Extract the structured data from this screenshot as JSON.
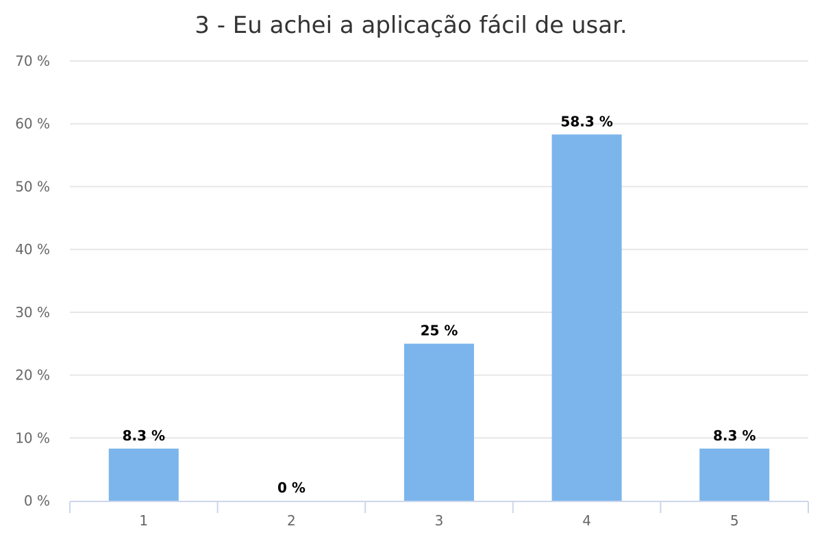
{
  "chart_data": {
    "type": "bar",
    "title": "3 - Eu achei a aplicação fácil de usar.",
    "xlabel": "",
    "ylabel": "",
    "categories": [
      "1",
      "2",
      "3",
      "4",
      "5"
    ],
    "values": [
      8.3,
      0,
      25,
      58.3,
      8.3
    ],
    "data_labels": [
      "8.3 %",
      "0 %",
      "25 %",
      "58.3 %",
      "8.3 %"
    ],
    "ylim": [
      0,
      70
    ],
    "yticks": [
      0,
      10,
      20,
      30,
      40,
      50,
      60,
      70
    ],
    "ytick_labels": [
      "0 %",
      "10 %",
      "20 %",
      "30 %",
      "40 %",
      "50 %",
      "60 %",
      "70 %"
    ],
    "grid": true,
    "legend": "none",
    "bar_color": "#7cb5ec"
  }
}
